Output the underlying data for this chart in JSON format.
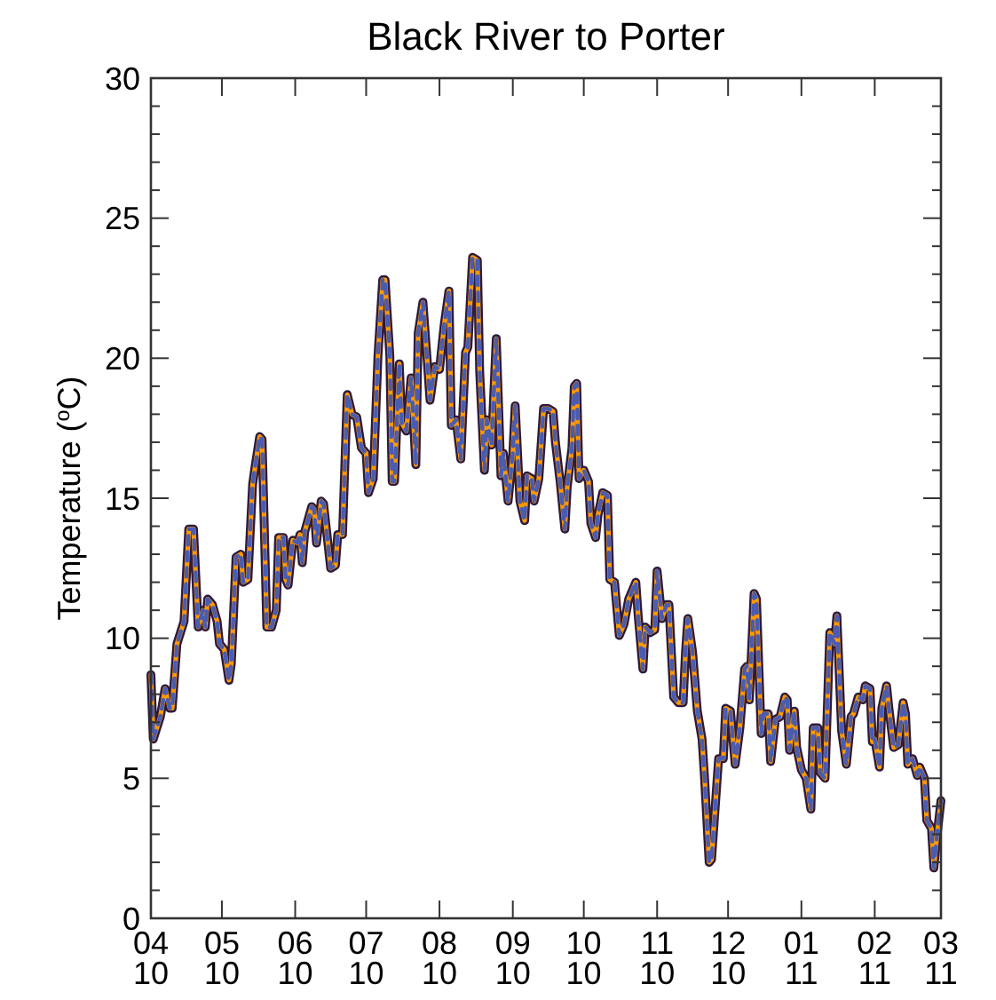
{
  "chart_data": {
    "type": "line",
    "title": "Black River to Porter",
    "ylabel": "Temperature ($^{o}$C)",
    "x": [
      "2010-04-01",
      "2010-04-02",
      "2010-04-05",
      "2010-04-07",
      "2010-04-09",
      "2010-04-10",
      "2010-04-12",
      "2010-04-15",
      "2010-04-17",
      "2010-04-19",
      "2010-04-21",
      "2010-04-23",
      "2010-04-24",
      "2010-04-25",
      "2010-04-27",
      "2010-04-29",
      "2010-04-30",
      "2010-05-02",
      "2010-05-04",
      "2010-05-05",
      "2010-05-07",
      "2010-05-09",
      "2010-05-10",
      "2010-05-12",
      "2010-05-14",
      "2010-05-15",
      "2010-05-17",
      "2010-05-18",
      "2010-05-20",
      "2010-05-22",
      "2010-05-24",
      "2010-05-25",
      "2010-05-27",
      "2010-05-28",
      "2010-05-29",
      "2010-05-31",
      "2010-06-02",
      "2010-06-03",
      "2010-06-04",
      "2010-06-05",
      "2010-06-08",
      "2010-06-09",
      "2010-06-10",
      "2010-06-12",
      "2010-06-13",
      "2010-06-16",
      "2010-06-18",
      "2010-06-19",
      "2010-06-21",
      "2010-06-23",
      "2010-06-25",
      "2010-06-27",
      "2010-06-29",
      "2010-07-01",
      "2010-07-02",
      "2010-07-04",
      "2010-07-06",
      "2010-07-08",
      "2010-07-09",
      "2010-07-11",
      "2010-07-12",
      "2010-07-13",
      "2010-07-15",
      "2010-07-16",
      "2010-07-18",
      "2010-07-20",
      "2010-07-22",
      "2010-07-23",
      "2010-07-25",
      "2010-07-27",
      "2010-07-28",
      "2010-07-30",
      "2010-08-01",
      "2010-08-02",
      "2010-08-03",
      "2010-08-05",
      "2010-08-06",
      "2010-08-08",
      "2010-08-10",
      "2010-08-12",
      "2010-08-13",
      "2010-08-15",
      "2010-08-17",
      "2010-08-18",
      "2010-08-20",
      "2010-08-21",
      "2010-08-23",
      "2010-08-25",
      "2010-08-27",
      "2010-08-28",
      "2010-08-30",
      "2010-09-01",
      "2010-09-02",
      "2010-09-04",
      "2010-09-06",
      "2010-09-07",
      "2010-09-09",
      "2010-09-10",
      "2010-09-12",
      "2010-09-14",
      "2010-09-16",
      "2010-09-18",
      "2010-09-19",
      "2010-09-21",
      "2010-09-23",
      "2010-09-24",
      "2010-09-26",
      "2010-09-27",
      "2010-09-28",
      "2010-09-29",
      "2010-10-01",
      "2010-10-03",
      "2010-10-04",
      "2010-10-06",
      "2010-10-07",
      "2010-10-09",
      "2010-10-11",
      "2010-10-12",
      "2010-10-14",
      "2010-10-16",
      "2010-10-17",
      "2010-10-18",
      "2010-10-20",
      "2010-10-21",
      "2010-10-23",
      "2010-10-24",
      "2010-10-26",
      "2010-10-27",
      "2010-10-29",
      "2010-10-31",
      "2010-11-01",
      "2010-11-03",
      "2010-11-05",
      "2010-11-06",
      "2010-11-08",
      "2010-11-10",
      "2010-11-12",
      "2010-11-13",
      "2010-11-14",
      "2010-11-16",
      "2010-11-18",
      "2010-11-20",
      "2010-11-21",
      "2010-11-23",
      "2010-11-24",
      "2010-11-26",
      "2010-11-27",
      "2010-11-29",
      "2010-11-30",
      "2010-12-02",
      "2010-12-04",
      "2010-12-06",
      "2010-12-08",
      "2010-12-09",
      "2010-12-10",
      "2010-12-12",
      "2010-12-13",
      "2010-12-15",
      "2010-12-16",
      "2010-12-18",
      "2010-12-19",
      "2010-12-21",
      "2010-12-23",
      "2010-12-25",
      "2010-12-26",
      "2010-12-27",
      "2010-12-29",
      "2010-12-30",
      "2011-01-01",
      "2011-01-03",
      "2011-01-05",
      "2011-01-06",
      "2011-01-08",
      "2011-01-09",
      "2011-01-11",
      "2011-01-13",
      "2011-01-15",
      "2011-01-16",
      "2011-01-18",
      "2011-01-20",
      "2011-01-22",
      "2011-01-23",
      "2011-01-25",
      "2011-01-27",
      "2011-01-28",
      "2011-01-30",
      "2011-01-31",
      "2011-02-01",
      "2011-02-03",
      "2011-02-04",
      "2011-02-06",
      "2011-02-07",
      "2011-02-09",
      "2011-02-11",
      "2011-02-13",
      "2011-02-14",
      "2011-02-15",
      "2011-02-17",
      "2011-02-19",
      "2011-02-20",
      "2011-02-22",
      "2011-02-23",
      "2011-02-25",
      "2011-02-26",
      "2011-02-27",
      "2011-03-01"
    ],
    "series": [
      {
        "color": "#2d1b3e",
        "line_style": "solid",
        "values": [
          8.7,
          6.4,
          7.2,
          8.2,
          7.5,
          7.5,
          9.8,
          10.6,
          13.9,
          13.9,
          10.4,
          11.0,
          10.4,
          11.4,
          11.2,
          10.6,
          9.8,
          9.6,
          8.5,
          9.1,
          12.9,
          13.0,
          12.0,
          12.1,
          15.5,
          16.1,
          17.2,
          17.1,
          10.4,
          10.4,
          11.0,
          13.6,
          13.6,
          12.1,
          11.9,
          13.5,
          13.4,
          13.7,
          12.7,
          13.8,
          14.7,
          14.6,
          13.4,
          14.9,
          14.8,
          12.5,
          12.6,
          13.7,
          13.7,
          18.7,
          18.0,
          17.9,
          16.8,
          16.6,
          15.2,
          15.7,
          20.1,
          22.8,
          22.8,
          20.1,
          15.6,
          15.6,
          19.8,
          17.7,
          17.4,
          19.3,
          16.2,
          20.9,
          22.0,
          19.7,
          18.5,
          19.7,
          19.6,
          20.4,
          21.2,
          22.4,
          17.6,
          17.8,
          16.4,
          20.2,
          20.4,
          23.6,
          23.5,
          19.5,
          16.0,
          17.8,
          16.9,
          20.7,
          15.8,
          16.6,
          14.9,
          16.6,
          18.3,
          14.9,
          14.2,
          15.8,
          15.7,
          14.9,
          15.7,
          18.2,
          18.2,
          18.1,
          17.0,
          15.6,
          13.9,
          15.4,
          16.8,
          19.0,
          19.1,
          15.7,
          16.0,
          15.6,
          14.1,
          13.6,
          14.4,
          15.2,
          15.1,
          12.1,
          12.0,
          10.1,
          10.3,
          10.5,
          11.4,
          11.6,
          12.0,
          10.8,
          8.9,
          10.4,
          10.2,
          10.3,
          12.4,
          10.7,
          11.2,
          11.2,
          7.9,
          7.7,
          7.7,
          9.5,
          10.7,
          9.5,
          7.4,
          6.4,
          5.1,
          2.0,
          2.1,
          4.5,
          5.7,
          5.7,
          7.5,
          7.4,
          5.5,
          6.8,
          8.9,
          9.0,
          7.8,
          11.6,
          11.4,
          6.6,
          7.3,
          7.3,
          5.6,
          7.1,
          7.2,
          7.9,
          7.8,
          6.0,
          7.4,
          6.1,
          5.3,
          5.0,
          3.9,
          6.8,
          6.8,
          5.2,
          5.0,
          10.2,
          9.8,
          10.8,
          6.7,
          5.5,
          7.2,
          7.3,
          7.9,
          7.8,
          8.3,
          8.2,
          6.3,
          6.4,
          5.4,
          7.5,
          8.3,
          7.5,
          6.1,
          6.2,
          7.7,
          7.3,
          5.5,
          5.7,
          5.1,
          5.4,
          5.0,
          3.5,
          3.2,
          1.8,
          2.7,
          4.2
        ]
      },
      {
        "color": "#ff9a00",
        "line_style": "solid",
        "values": [
          8.7,
          6.4,
          7.2,
          8.2,
          7.5,
          7.5,
          9.8,
          10.6,
          13.9,
          13.9,
          10.4,
          11.0,
          10.4,
          11.4,
          11.2,
          10.6,
          9.8,
          9.6,
          8.5,
          9.1,
          12.9,
          13.0,
          12.0,
          12.1,
          15.5,
          16.1,
          17.2,
          17.1,
          10.4,
          10.4,
          11.0,
          13.6,
          13.6,
          12.1,
          11.9,
          13.5,
          13.4,
          13.7,
          12.7,
          13.8,
          14.7,
          14.6,
          13.4,
          14.9,
          14.8,
          12.5,
          12.6,
          13.7,
          13.7,
          18.7,
          18.0,
          17.9,
          16.8,
          16.6,
          15.2,
          15.7,
          20.1,
          22.8,
          22.8,
          20.1,
          15.6,
          15.6,
          19.8,
          17.7,
          17.4,
          19.3,
          16.2,
          20.9,
          22.0,
          19.7,
          18.5,
          19.7,
          19.6,
          20.4,
          21.2,
          22.4,
          17.6,
          17.8,
          16.4,
          20.2,
          20.4,
          23.6,
          23.5,
          19.5,
          16.0,
          17.8,
          16.9,
          20.7,
          15.8,
          16.6,
          14.9,
          16.6,
          18.3,
          14.9,
          14.2,
          15.8,
          15.7,
          14.9,
          15.7,
          18.2,
          18.2,
          18.1,
          17.0,
          15.6,
          13.9,
          15.4,
          16.8,
          19.0,
          19.1,
          15.7,
          16.0,
          15.6,
          14.1,
          13.6,
          14.4,
          15.2,
          15.1,
          12.1,
          12.0,
          10.1,
          10.3,
          10.5,
          11.4,
          11.6,
          12.0,
          10.8,
          8.9,
          10.4,
          10.2,
          10.3,
          12.4,
          10.7,
          11.2,
          11.2,
          7.9,
          7.7,
          7.7,
          9.5,
          10.7,
          9.5,
          7.4,
          6.4,
          5.1,
          2.0,
          2.1,
          4.5,
          5.7,
          5.7,
          7.5,
          7.4,
          5.5,
          6.8,
          8.9,
          9.0,
          7.8,
          11.6,
          11.4,
          6.6,
          7.3,
          7.3,
          5.6,
          7.1,
          7.2,
          7.9,
          7.8,
          6.0,
          7.4,
          6.1,
          5.3,
          5.0,
          3.9,
          6.8,
          6.8,
          5.2,
          5.0,
          10.2,
          9.8,
          10.8,
          6.7,
          5.5,
          7.2,
          7.3,
          7.9,
          7.8,
          8.3,
          8.2,
          6.3,
          6.4,
          5.4,
          7.5,
          8.3,
          7.5,
          6.1,
          6.2,
          7.7,
          7.3,
          5.5,
          5.7,
          5.1,
          5.4,
          5.0,
          3.5,
          3.2,
          1.8,
          2.7,
          4.2
        ]
      },
      {
        "color": "#4a5cb0",
        "line_style": "dashed",
        "values": [
          8.7,
          6.4,
          7.2,
          8.2,
          7.5,
          7.5,
          9.8,
          10.6,
          13.9,
          13.9,
          10.4,
          11.0,
          10.4,
          11.4,
          11.2,
          10.6,
          9.8,
          9.6,
          8.5,
          9.1,
          12.9,
          13.0,
          12.0,
          12.1,
          15.5,
          16.1,
          17.2,
          17.1,
          10.4,
          10.4,
          11.0,
          13.6,
          13.6,
          12.1,
          11.9,
          13.5,
          13.4,
          13.7,
          12.7,
          13.8,
          14.7,
          14.6,
          13.4,
          14.9,
          14.8,
          12.5,
          12.6,
          13.7,
          13.7,
          18.7,
          18.0,
          17.9,
          16.8,
          16.6,
          15.2,
          15.7,
          20.1,
          22.8,
          22.8,
          20.1,
          15.6,
          15.6,
          19.8,
          17.7,
          17.4,
          19.3,
          16.2,
          20.9,
          22.0,
          19.7,
          18.5,
          19.7,
          19.6,
          20.4,
          21.2,
          22.4,
          17.6,
          17.8,
          16.4,
          20.2,
          20.4,
          23.6,
          23.5,
          19.5,
          16.0,
          17.8,
          16.9,
          20.7,
          15.8,
          16.6,
          14.9,
          16.6,
          18.3,
          14.9,
          14.2,
          15.8,
          15.7,
          14.9,
          15.7,
          18.2,
          18.2,
          18.1,
          17.0,
          15.6,
          13.9,
          15.4,
          16.8,
          19.0,
          19.1,
          15.7,
          16.0,
          15.6,
          14.1,
          13.6,
          14.4,
          15.2,
          15.1,
          12.1,
          12.0,
          10.1,
          10.3,
          10.5,
          11.4,
          11.6,
          12.0,
          10.8,
          8.9,
          10.4,
          10.2,
          10.3,
          12.4,
          10.7,
          11.2,
          11.2,
          7.9,
          7.7,
          7.7,
          9.5,
          10.7,
          9.5,
          7.4,
          6.4,
          5.1,
          2.0,
          2.1,
          4.5,
          5.7,
          5.7,
          7.5,
          7.4,
          5.5,
          6.8,
          8.9,
          9.0,
          7.8,
          11.6,
          11.4,
          6.6,
          7.3,
          7.3,
          5.6,
          7.1,
          7.2,
          7.9,
          7.8,
          6.0,
          7.4,
          6.1,
          5.3,
          5.0,
          3.9,
          6.8,
          6.8,
          5.2,
          5.0,
          10.2,
          9.8,
          10.8,
          6.7,
          5.5,
          7.2,
          7.3,
          7.9,
          7.8,
          8.3,
          8.2,
          6.3,
          6.4,
          5.4,
          7.5,
          8.3,
          7.5,
          6.1,
          6.2,
          7.7,
          7.3,
          5.5,
          5.7,
          5.1,
          5.4,
          5.0,
          3.5,
          3.2,
          1.8,
          2.7,
          4.2
        ]
      }
    ],
    "xlim": [
      "2010-04-01",
      "2011-03-01"
    ],
    "xticks": [
      {
        "value": "2010-04",
        "label": "04\n10"
      },
      {
        "value": "2010-05",
        "label": "05\n10"
      },
      {
        "value": "2010-06",
        "label": "06\n10"
      },
      {
        "value": "2010-07",
        "label": "07\n10"
      },
      {
        "value": "2010-08",
        "label": "08\n10"
      },
      {
        "value": "2010-09",
        "label": "09\n10"
      },
      {
        "value": "2010-10",
        "label": "10\n10"
      },
      {
        "value": "2010-11",
        "label": "11\n10"
      },
      {
        "value": "2010-12",
        "label": "12\n10"
      },
      {
        "value": "2011-01",
        "label": "01\n11"
      },
      {
        "value": "2011-02",
        "label": "02\n11"
      },
      {
        "value": "2011-03",
        "label": "03\n11"
      }
    ],
    "ylim": [
      0,
      30
    ],
    "yticks": [
      0,
      {
        "value": 1,
        "label": null
      },
      {
        "value": 2,
        "label": null
      },
      {
        "value": 3,
        "label": null
      },
      {
        "value": 4,
        "label": null
      },
      5,
      {
        "value": 6,
        "label": null
      },
      {
        "value": 7,
        "label": null
      },
      {
        "value": 8,
        "label": null
      },
      {
        "value": 9,
        "label": null
      },
      10,
      {
        "value": 11,
        "label": null
      },
      {
        "value": 12,
        "label": null
      },
      {
        "value": 13,
        "label": null
      },
      {
        "value": 14,
        "label": null
      },
      15,
      {
        "value": 16,
        "label": null
      },
      {
        "value": 17,
        "label": null
      },
      {
        "value": 18,
        "label": null
      },
      {
        "value": 19,
        "label": null
      },
      20,
      {
        "value": 21,
        "label": null
      },
      {
        "value": 22,
        "label": null
      },
      {
        "value": 23,
        "label": null
      },
      {
        "value": 24,
        "label": null
      },
      25,
      {
        "value": 26,
        "label": null
      },
      {
        "value": 27,
        "label": null
      },
      {
        "value": 28,
        "label": null
      },
      {
        "value": 29,
        "label": null
      },
      30
    ],
    "grid": false
  }
}
